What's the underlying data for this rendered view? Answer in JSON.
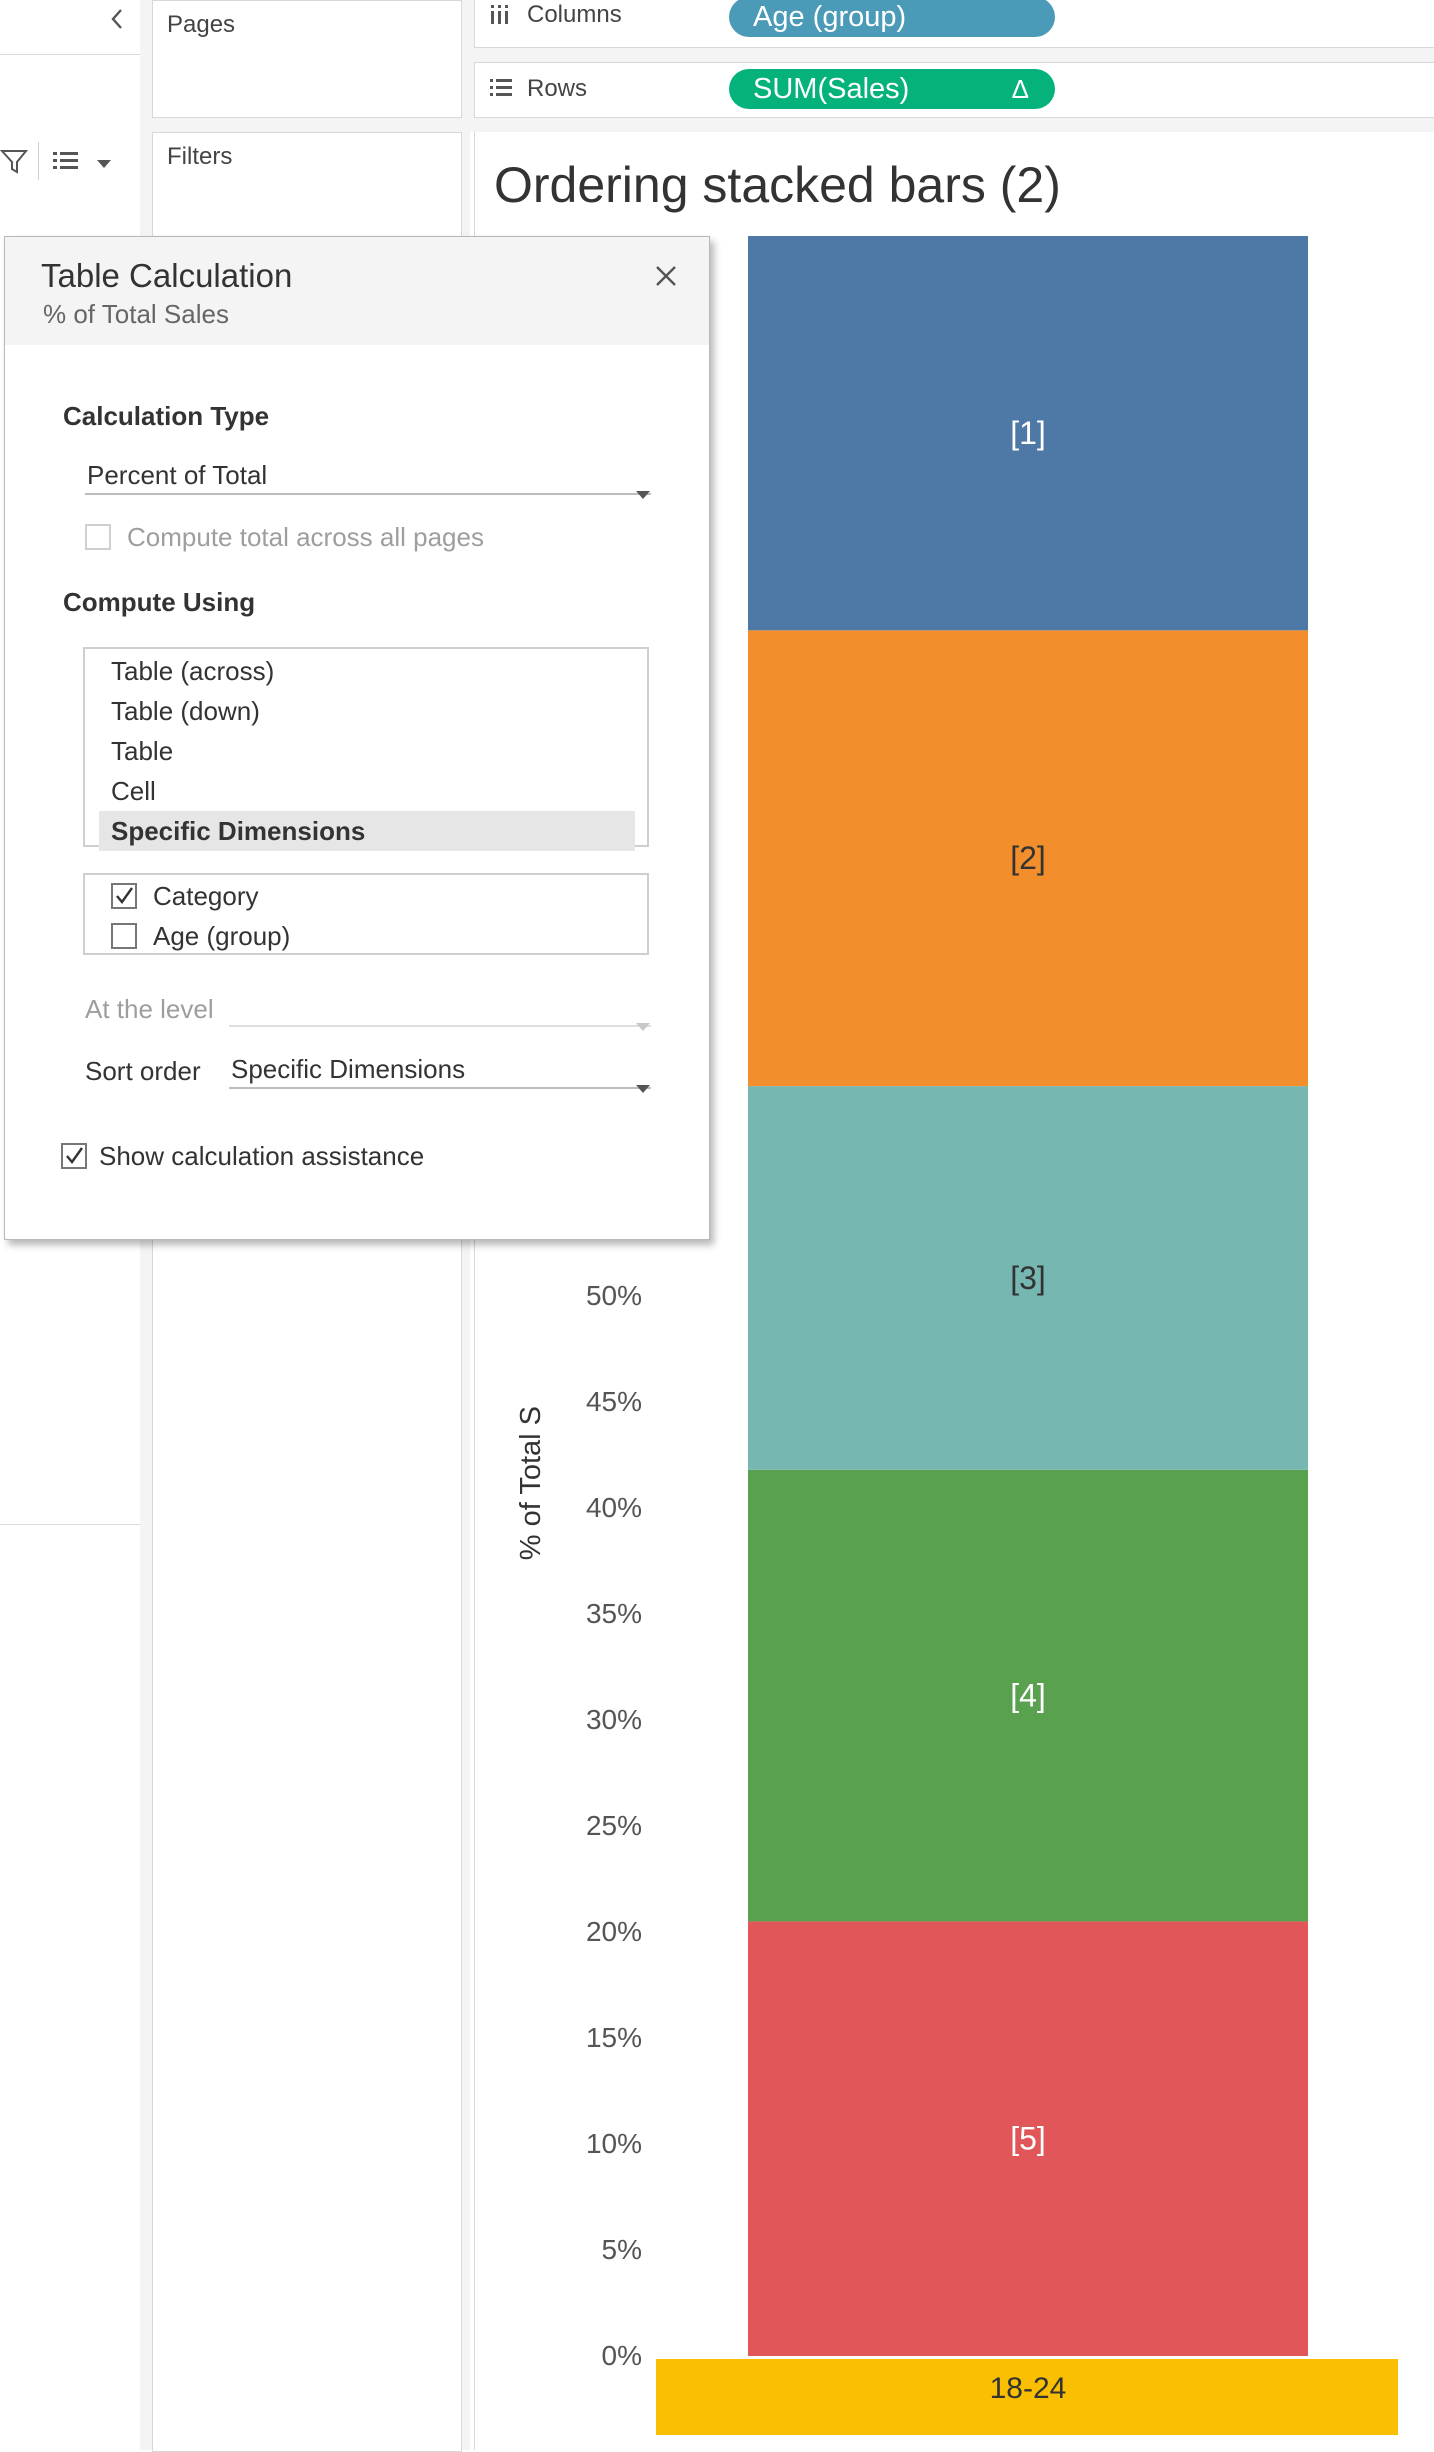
{
  "left_pane": {
    "collapse_icon": "chevron-left-icon",
    "filter_icon": "filter-icon",
    "list_icon": "list-view-icon"
  },
  "pages_card": {
    "label": "Pages"
  },
  "filters_card": {
    "label": "Filters"
  },
  "shelves": {
    "columns": {
      "label": "Columns",
      "pill": "Age (group)",
      "pill_color": "#4b9ab8"
    },
    "rows": {
      "label": "Rows",
      "pill": "SUM(Sales)",
      "pill_delta": "Δ",
      "pill_color": "#06b27b"
    }
  },
  "chart_data": {
    "type": "bar",
    "title": "Ordering stacked bars (2)",
    "ylabel": "% of Total S",
    "ytick_labels": [
      "0%",
      "5%",
      "10%",
      "15%",
      "20%",
      "25%",
      "30%",
      "35%",
      "40%",
      "45%",
      "50%"
    ],
    "ylim": [
      0,
      100
    ],
    "categories": [
      "18-24"
    ],
    "category_color": "#f9bf00",
    "series": [
      {
        "name": "[5]",
        "values": [
          20.5
        ],
        "color": "#e15759",
        "label_color": "#ffffff"
      },
      {
        "name": "[4]",
        "values": [
          21.3
        ],
        "color": "#59a14f",
        "label_color": "#ffffff"
      },
      {
        "name": "[3]",
        "values": [
          18.1
        ],
        "color": "#76b7b2",
        "label_color": "#333333"
      },
      {
        "name": "[2]",
        "values": [
          21.5
        ],
        "color": "#f28e2b",
        "label_color": "#333333"
      },
      {
        "name": "[1]",
        "values": [
          18.6
        ],
        "color": "#4e79a7",
        "label_color": "#ffffff"
      }
    ]
  },
  "dialog": {
    "title": "Table Calculation",
    "subtitle": "% of Total Sales",
    "calc_type_label": "Calculation Type",
    "calc_type_value": "Percent of Total",
    "compute_total_label": "Compute total across all pages",
    "compute_using_label": "Compute Using",
    "compute_options": [
      "Table (across)",
      "Table (down)",
      "Table",
      "Cell",
      "Specific Dimensions"
    ],
    "selected_option": "Specific Dimensions",
    "dimensions": [
      {
        "label": "Category",
        "checked": true
      },
      {
        "label": "Age (group)",
        "checked": false
      }
    ],
    "at_level_label": "At the level",
    "at_level_value": "",
    "sort_order_label": "Sort order",
    "sort_order_value": "Specific Dimensions",
    "show_assist_label": "Show calculation assistance",
    "show_assist_checked": true
  }
}
